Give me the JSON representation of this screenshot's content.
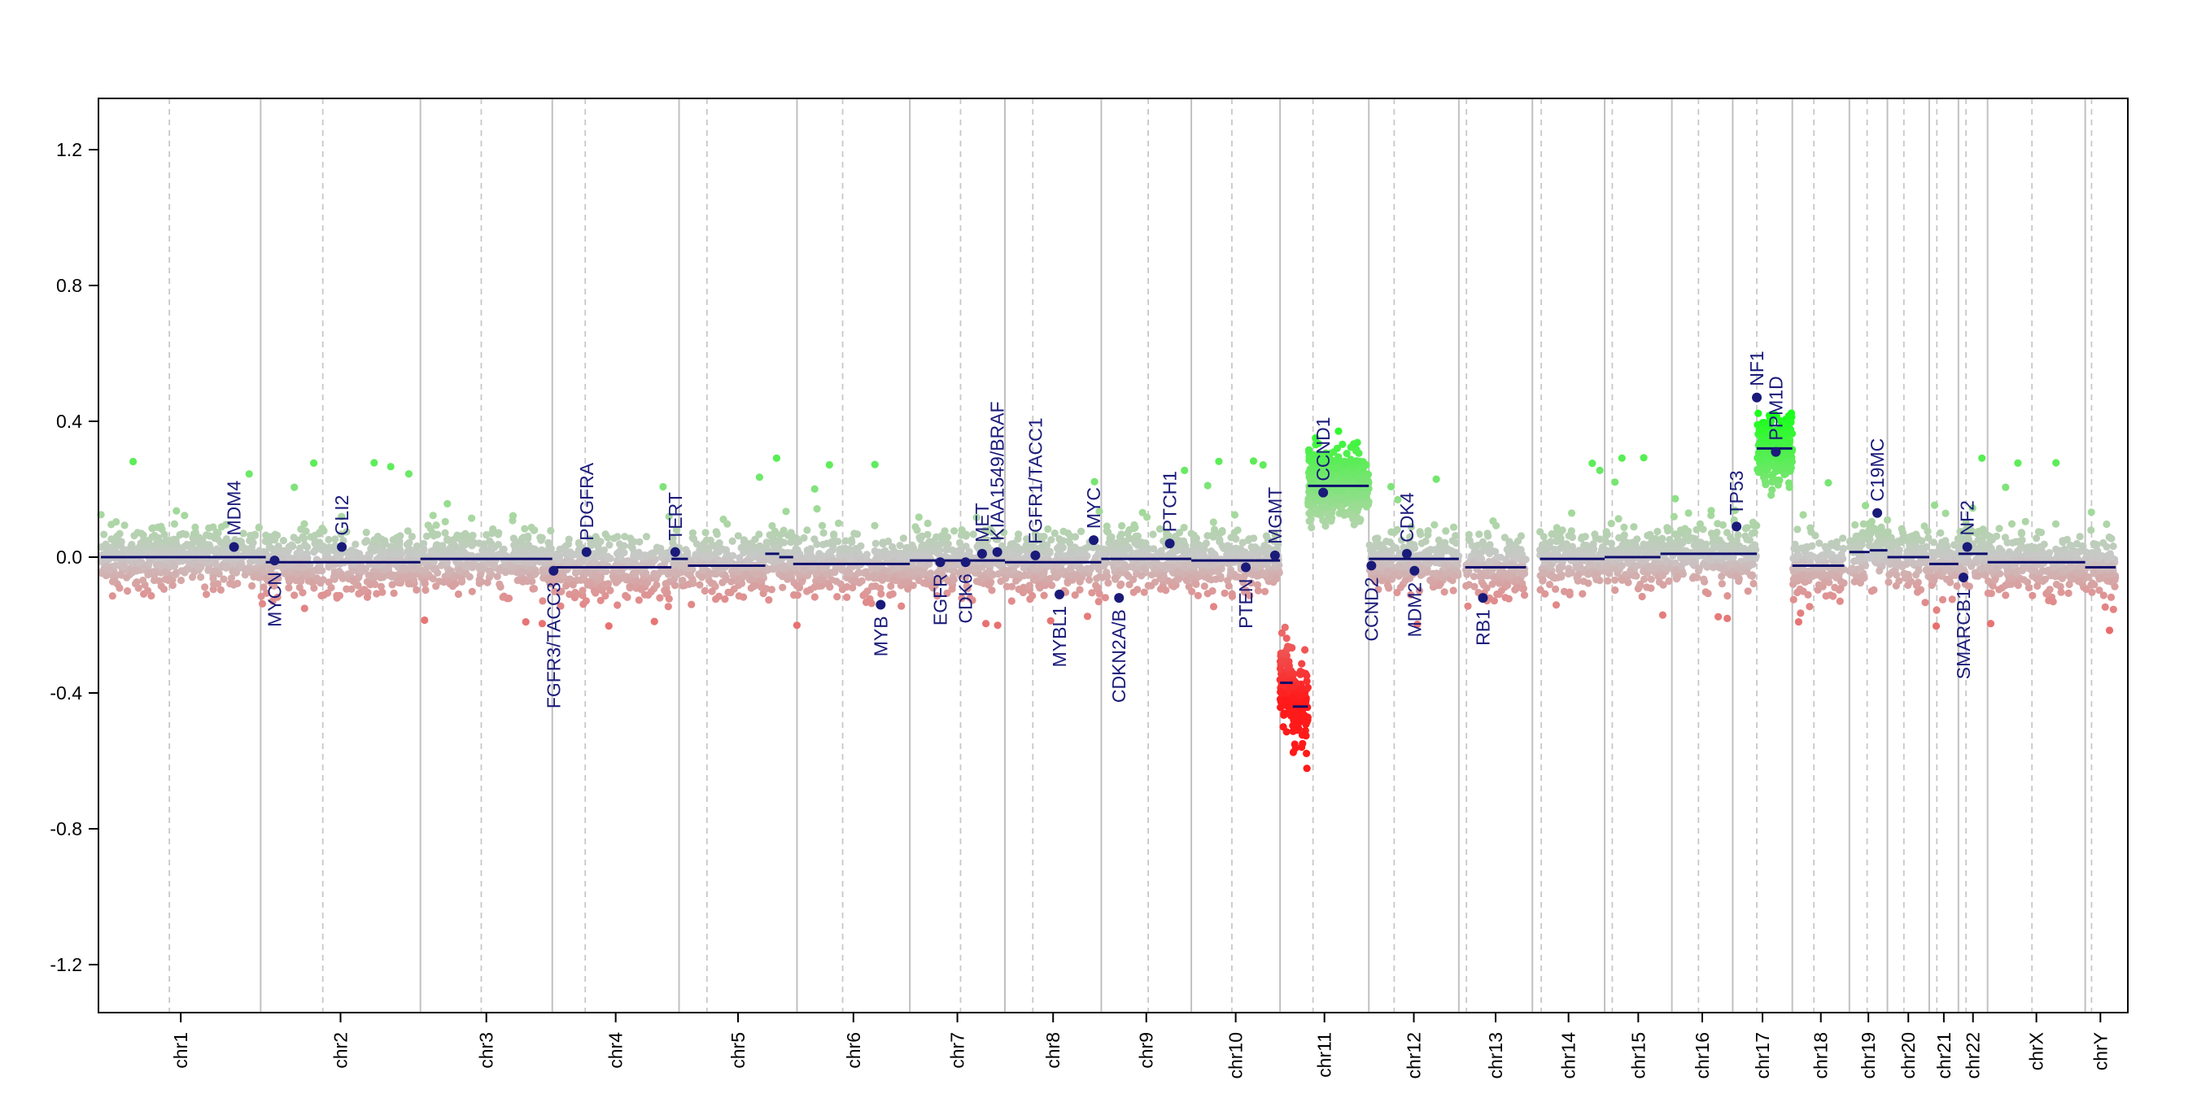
{
  "chart_data": {
    "type": "scatter",
    "title": "",
    "xlabel": "",
    "ylabel": "",
    "ylim": [
      -1.35,
      1.35
    ],
    "yticks": [
      -1.2,
      -0.8,
      -0.4,
      0.0,
      0.4,
      0.8,
      1.2
    ],
    "ytick_labels": [
      "-1.2",
      "-0.8",
      "-0.4",
      "0.0",
      "0.4",
      "0.8",
      "1.2"
    ],
    "grid": "vertical chromosome boundaries (solid) and centromeres (dashed)",
    "colors": {
      "gain": "#1aff1a",
      "neutral_pos": "#a8d8a0",
      "neutral_neg": "#e09090",
      "loss": "#ff1a1a",
      "segment": "#0d0d6b",
      "gene": "#1a1a7a"
    },
    "chromosomes": [
      {
        "name": "chr1",
        "start": 0.0,
        "end": 12.6,
        "cen": 5.4
      },
      {
        "name": "chr2",
        "start": 12.6,
        "end": 25.2,
        "cen": 17.5
      },
      {
        "name": "chr3",
        "start": 25.2,
        "end": 35.6,
        "cen": 30.0
      },
      {
        "name": "chr4",
        "start": 35.6,
        "end": 45.6,
        "cen": 38.2
      },
      {
        "name": "chr5",
        "start": 45.6,
        "end": 54.9,
        "cen": 47.8
      },
      {
        "name": "chr6",
        "start": 54.9,
        "end": 63.8,
        "cen": 58.5
      },
      {
        "name": "chr7",
        "start": 63.8,
        "end": 71.3,
        "cen": 67.8
      },
      {
        "name": "chr8",
        "start": 71.3,
        "end": 78.9,
        "cen": 73.5
      },
      {
        "name": "chr9",
        "start": 78.9,
        "end": 86.0,
        "cen": 82.6
      },
      {
        "name": "chr10",
        "start": 86.0,
        "end": 93.0,
        "cen": 89.2
      },
      {
        "name": "chr11",
        "start": 93.0,
        "end": 100.0,
        "cen": 95.6
      },
      {
        "name": "chr12",
        "start": 100.0,
        "end": 107.1,
        "cen": 102.0
      },
      {
        "name": "chr13",
        "start": 107.1,
        "end": 112.9,
        "cen": 107.7
      },
      {
        "name": "chr14",
        "start": 112.9,
        "end": 118.6,
        "cen": 113.6
      },
      {
        "name": "chr15",
        "start": 118.6,
        "end": 123.9,
        "cen": 119.2
      },
      {
        "name": "chr16",
        "start": 123.9,
        "end": 128.7,
        "cen": 126.0
      },
      {
        "name": "chr17",
        "start": 128.7,
        "end": 133.4,
        "cen": 130.6
      },
      {
        "name": "chr18",
        "start": 133.4,
        "end": 137.9,
        "cen": 135.1
      },
      {
        "name": "chr19",
        "start": 137.9,
        "end": 140.9,
        "cen": 139.3
      },
      {
        "name": "chr20",
        "start": 140.9,
        "end": 144.2,
        "cen": 142.2
      },
      {
        "name": "chr21",
        "start": 144.2,
        "end": 146.5,
        "cen": 144.8
      },
      {
        "name": "chr22",
        "start": 146.5,
        "end": 148.8,
        "cen": 147.1
      },
      {
        "name": "chrX",
        "start": 148.8,
        "end": 156.5,
        "cen": 152.3
      },
      {
        "name": "chrY",
        "start": 156.5,
        "end": 158.9,
        "cen": 157.0
      }
    ],
    "segments": [
      {
        "start": 0.0,
        "end": 13.0,
        "value": 0.0
      },
      {
        "start": 13.0,
        "end": 25.2,
        "value": -0.015
      },
      {
        "start": 25.2,
        "end": 35.6,
        "value": -0.005
      },
      {
        "start": 35.6,
        "end": 45.0,
        "value": -0.03
      },
      {
        "start": 45.0,
        "end": 46.3,
        "value": -0.005
      },
      {
        "start": 46.3,
        "end": 52.4,
        "value": -0.025
      },
      {
        "start": 52.4,
        "end": 53.5,
        "value": 0.01
      },
      {
        "start": 53.5,
        "end": 54.6,
        "value": 0.0
      },
      {
        "start": 54.6,
        "end": 63.8,
        "value": -0.02
      },
      {
        "start": 63.8,
        "end": 71.3,
        "value": -0.01
      },
      {
        "start": 71.3,
        "end": 78.9,
        "value": -0.015
      },
      {
        "start": 78.9,
        "end": 86.0,
        "value": -0.005
      },
      {
        "start": 86.0,
        "end": 93.0,
        "value": -0.01
      },
      {
        "start": 93.0,
        "end": 94.0,
        "value": -0.37
      },
      {
        "start": 94.0,
        "end": 95.2,
        "value": -0.44
      },
      {
        "start": 95.2,
        "end": 100.0,
        "value": 0.21
      },
      {
        "start": 100.0,
        "end": 107.1,
        "value": -0.005
      },
      {
        "start": 107.6,
        "end": 112.4,
        "value": -0.03
      },
      {
        "start": 113.5,
        "end": 118.6,
        "value": -0.005
      },
      {
        "start": 118.6,
        "end": 123.0,
        "value": 0.0
      },
      {
        "start": 123.0,
        "end": 128.7,
        "value": 0.01
      },
      {
        "start": 128.7,
        "end": 130.6,
        "value": 0.01
      },
      {
        "start": 130.6,
        "end": 133.4,
        "value": 0.32
      },
      {
        "start": 133.4,
        "end": 137.5,
        "value": -0.025
      },
      {
        "start": 137.9,
        "end": 139.5,
        "value": 0.015
      },
      {
        "start": 139.5,
        "end": 140.9,
        "value": 0.02
      },
      {
        "start": 140.9,
        "end": 144.2,
        "value": 0.0
      },
      {
        "start": 144.2,
        "end": 146.5,
        "value": -0.02
      },
      {
        "start": 146.5,
        "end": 148.8,
        "value": 0.01
      },
      {
        "start": 148.8,
        "end": 156.5,
        "value": -0.015
      },
      {
        "start": 156.5,
        "end": 158.9,
        "value": -0.03
      }
    ],
    "genes": [
      {
        "name": "MDM4",
        "x": 10.5,
        "y": 0.03,
        "side": "above"
      },
      {
        "name": "MYCN",
        "x": 13.7,
        "y": -0.01,
        "side": "below"
      },
      {
        "name": "GLI2",
        "x": 19.0,
        "y": 0.03,
        "side": "above"
      },
      {
        "name": "FGFR3/TACC3",
        "x": 35.7,
        "y": -0.04,
        "side": "below"
      },
      {
        "name": "PDGFRA",
        "x": 38.3,
        "y": 0.015,
        "side": "above"
      },
      {
        "name": "TERT",
        "x": 45.3,
        "y": 0.015,
        "side": "above"
      },
      {
        "name": "MYB",
        "x": 61.5,
        "y": -0.14,
        "side": "below"
      },
      {
        "name": "EGFR",
        "x": 66.2,
        "y": -0.015,
        "side": "below"
      },
      {
        "name": "CDK6",
        "x": 68.2,
        "y": -0.015,
        "side": "below"
      },
      {
        "name": "MET",
        "x": 69.5,
        "y": 0.01,
        "side": "above"
      },
      {
        "name": "KIAA1549/BRAF",
        "x": 70.7,
        "y": 0.015,
        "side": "above"
      },
      {
        "name": "FGFR1/TACC1",
        "x": 73.7,
        "y": 0.005,
        "side": "above"
      },
      {
        "name": "MYBL1",
        "x": 75.6,
        "y": -0.11,
        "side": "below"
      },
      {
        "name": "MYC",
        "x": 78.3,
        "y": 0.05,
        "side": "above"
      },
      {
        "name": "CDKN2A/B",
        "x": 80.3,
        "y": -0.12,
        "side": "below"
      },
      {
        "name": "PTCH1",
        "x": 84.3,
        "y": 0.04,
        "side": "above"
      },
      {
        "name": "PTEN",
        "x": 90.3,
        "y": -0.03,
        "side": "below"
      },
      {
        "name": "MGMT",
        "x": 92.6,
        "y": 0.005,
        "side": "above"
      },
      {
        "name": "CCND1",
        "x": 96.4,
        "y": 0.19,
        "side": "above"
      },
      {
        "name": "CCND2",
        "x": 100.2,
        "y": -0.025,
        "side": "below"
      },
      {
        "name": "CDK4",
        "x": 103.0,
        "y": 0.01,
        "side": "above"
      },
      {
        "name": "MDM2",
        "x": 103.6,
        "y": -0.04,
        "side": "below"
      },
      {
        "name": "RB1",
        "x": 109.0,
        "y": -0.12,
        "side": "below"
      },
      {
        "name": "TP53",
        "x": 129.0,
        "y": 0.09,
        "side": "above"
      },
      {
        "name": "NF1",
        "x": 130.6,
        "y": 0.47,
        "side": "above"
      },
      {
        "name": "PPM1D",
        "x": 132.1,
        "y": 0.31,
        "side": "above"
      },
      {
        "name": "C19MC",
        "x": 140.1,
        "y": 0.13,
        "side": "above"
      },
      {
        "name": "SMARCB1",
        "x": 146.9,
        "y": -0.06,
        "side": "below"
      },
      {
        "name": "NF2",
        "x": 147.2,
        "y": 0.03,
        "side": "above"
      }
    ]
  }
}
